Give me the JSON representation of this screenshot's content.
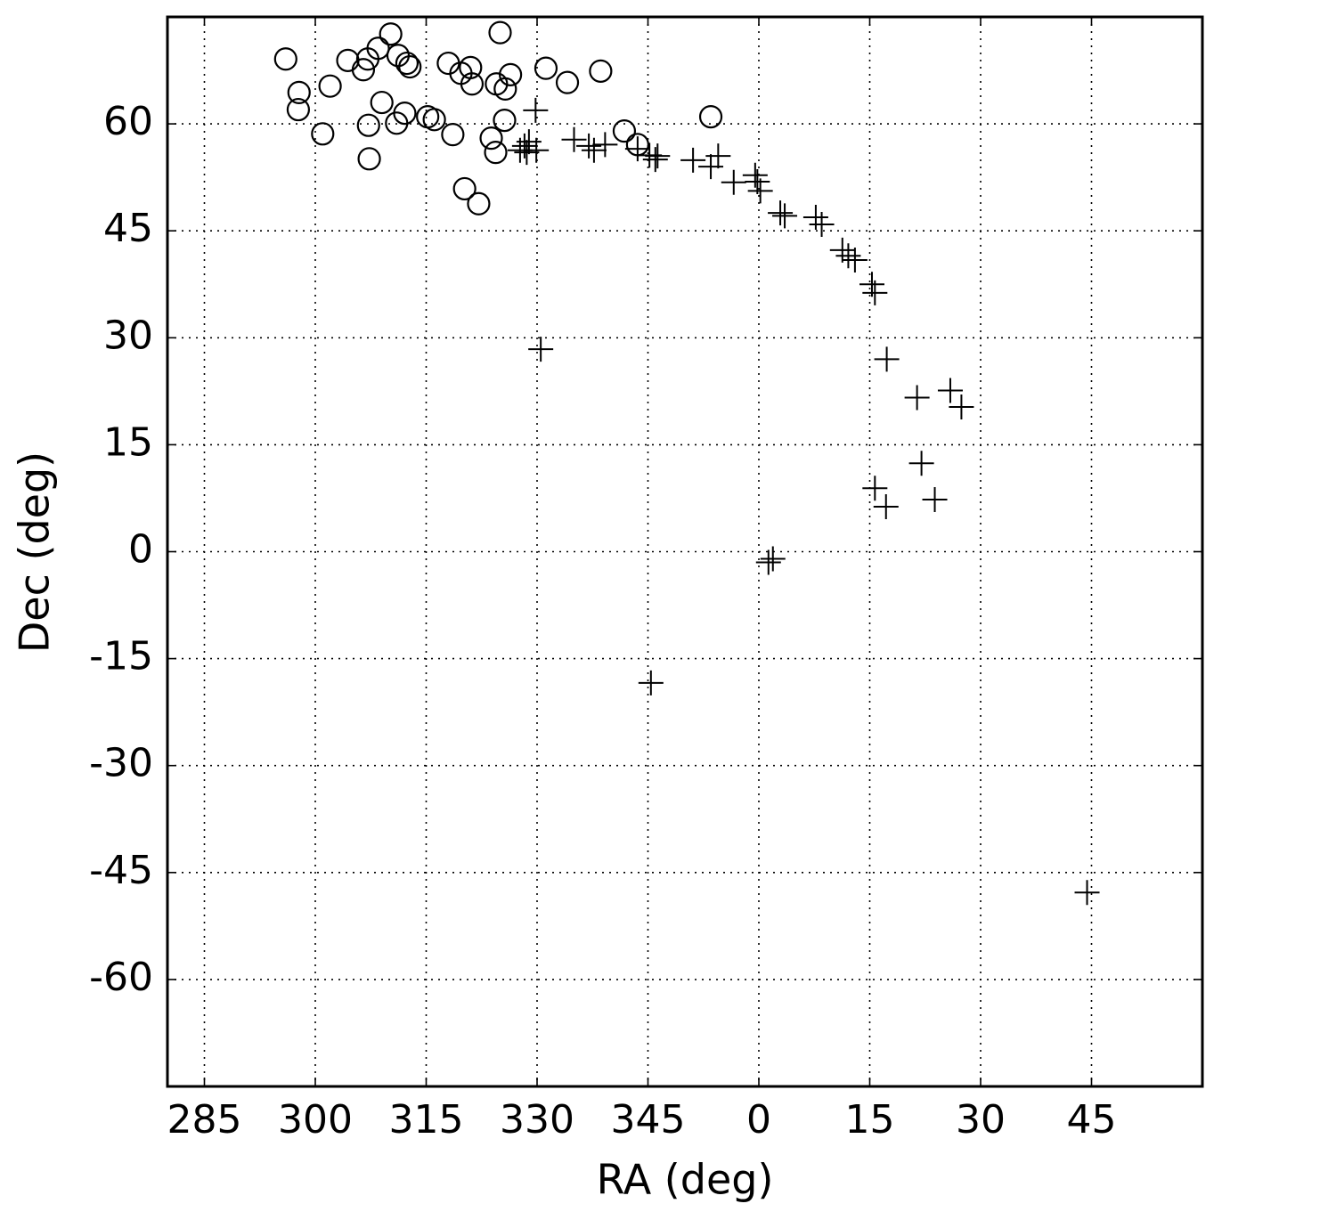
{
  "chart_data": {
    "type": "scatter",
    "xlabel": "RA (deg)",
    "ylabel": "Dec (deg)",
    "xlim": [
      280,
      420
    ],
    "ylim": [
      -75,
      75
    ],
    "xticks": [
      285,
      300,
      315,
      330,
      345,
      {
        "value": 360,
        "label": "0"
      },
      {
        "value": 375,
        "label": "15"
      },
      {
        "value": 390,
        "label": "30"
      },
      {
        "value": 405,
        "label": "45"
      }
    ],
    "yticks": [
      -60,
      -45,
      -30,
      -15,
      0,
      15,
      30,
      45,
      60
    ],
    "grid": true,
    "series": [
      {
        "marker": "circle",
        "color": "#000000",
        "x": [
          296.0,
          297.8,
          297.7,
          301.0,
          302.0,
          304.4,
          306.5,
          307.1,
          308.5,
          310.2,
          311.2,
          312.4,
          312.8,
          309.0,
          307.2,
          307.3,
          311.0,
          312.1,
          315.2,
          316.1,
          318.0,
          318.6,
          319.7,
          321.0,
          321.2,
          320.2,
          322.1,
          323.8,
          324.4,
          324.5,
          325.0,
          325.7,
          326.4,
          325.6,
          331.2,
          334.1,
          338.6,
          341.8,
          343.6,
          353.5
        ],
        "values": [
          69.1,
          64.4,
          62.0,
          58.6,
          65.3,
          68.9,
          67.6,
          69.1,
          70.6,
          72.6,
          69.6,
          68.5,
          68.0,
          63.0,
          59.8,
          55.1,
          60.1,
          61.5,
          61.0,
          60.6,
          68.5,
          58.5,
          67.1,
          67.9,
          65.6,
          50.9,
          48.8,
          58.0,
          56.0,
          65.6,
          72.8,
          64.9,
          66.9,
          60.5,
          67.8,
          65.8,
          67.4,
          59.0,
          57.1,
          61.0
        ]
      },
      {
        "marker": "plus",
        "color": "#000000",
        "x": [
          329.8,
          329.9,
          328.3,
          327.7,
          328.9,
          328.6,
          330.5,
          335.0,
          337.0,
          337.7,
          339.2,
          343.6,
          345.2,
          346.0,
          346.3,
          351.1,
          353.5,
          354.5,
          356.6,
          359.5,
          359.8,
          360.2,
          362.9,
          363.5,
          367.7,
          368.5,
          371.3,
          372.1,
          373.0,
          375.3,
          375.7,
          377.3,
          381.4,
          385.9,
          387.4,
          382.0,
          375.7,
          377.2,
          383.8,
          361.3,
          361.9,
          345.4,
          404.4
        ],
        "values": [
          61.9,
          56.3,
          56.9,
          56.3,
          57.5,
          56.0,
          28.4,
          57.8,
          56.9,
          56.3,
          57.1,
          56.5,
          55.6,
          55.0,
          55.5,
          54.9,
          54.0,
          55.5,
          51.8,
          52.8,
          51.9,
          50.6,
          47.5,
          47.1,
          46.9,
          45.9,
          42.3,
          41.5,
          40.9,
          37.5,
          36.3,
          27.0,
          21.6,
          22.6,
          20.3,
          12.4,
          8.9,
          6.3,
          7.3,
          -1.5,
          -1.0,
          -18.4,
          -47.8
        ]
      }
    ]
  }
}
